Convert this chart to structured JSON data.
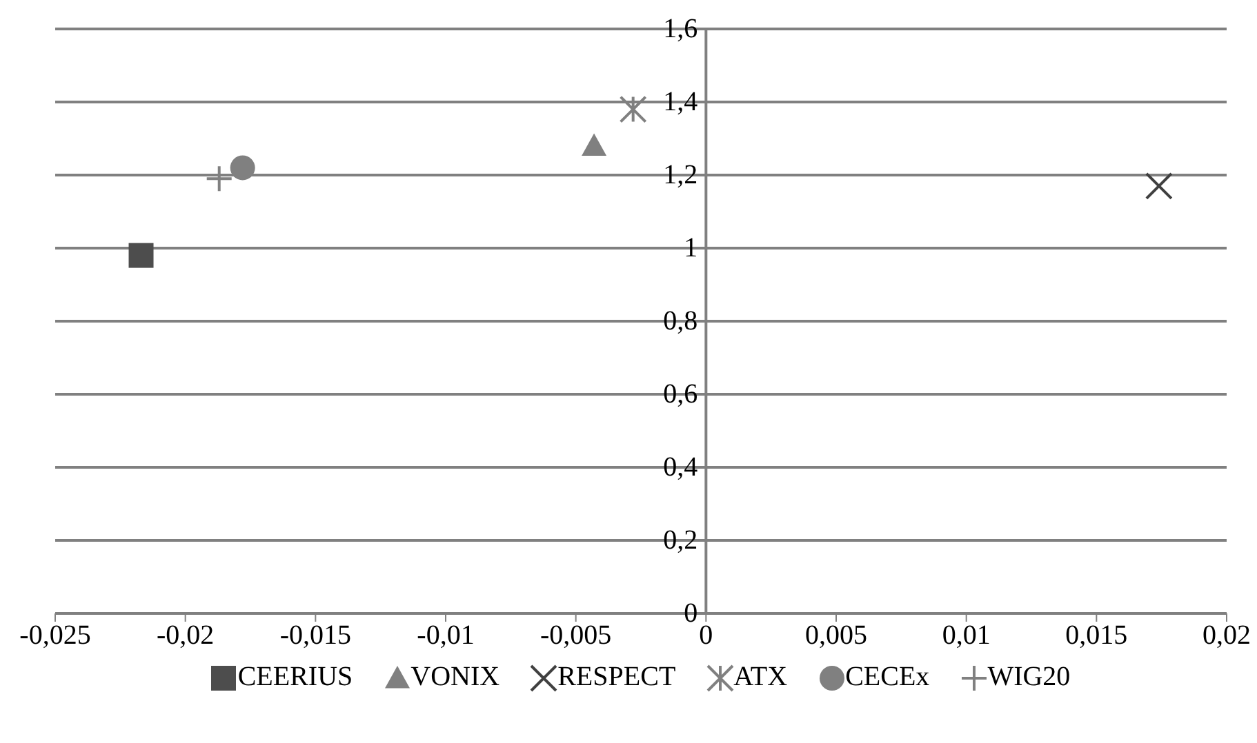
{
  "chart_data": {
    "type": "scatter",
    "series": [
      {
        "name": "CEERIUS",
        "color": "#4d4d4d",
        "marker": "square",
        "x": [
          -0.0217
        ],
        "values": [
          0.98
        ]
      },
      {
        "name": "VONIX",
        "color": "#808080",
        "marker": "triangle",
        "x": [
          -0.0043
        ],
        "values": [
          1.28
        ]
      },
      {
        "name": "RESPECT",
        "color": "#404040",
        "marker": "cross",
        "x": [
          0.0174
        ],
        "values": [
          1.17
        ]
      },
      {
        "name": "ATX",
        "color": "#808080",
        "x": [
          -0.0028
        ],
        "values": [
          1.38
        ]
      },
      {
        "name": "CECEx",
        "color": "#808080",
        "marker": "circle",
        "x": [
          -0.0178
        ],
        "values": [
          1.22
        ]
      },
      {
        "name": "WIG20",
        "color": "#808080",
        "marker": "plus",
        "x": [
          -0.0187
        ],
        "values": [
          1.19
        ]
      }
    ],
    "xlim": [
      -0.025,
      0.02
    ],
    "xticks": [
      {
        "value": -0.025,
        "label": "-0,025"
      },
      {
        "value": -0.02,
        "label": "-0,02"
      },
      {
        "value": -0.015,
        "label": "-0,015"
      },
      {
        "value": -0.01,
        "label": "-0,01"
      },
      {
        "value": -0.005,
        "label": "-0,005"
      },
      0,
      {
        "value": 0.005,
        "label": "0,005"
      },
      {
        "value": 0.01,
        "label": "0,01"
      },
      {
        "value": 0.015,
        "label": "0,015"
      },
      {
        "value": 0.02,
        "label": "0,02"
      }
    ],
    "ylim": [
      0,
      1.6
    ],
    "yticks": [
      0,
      {
        "value": 0.2,
        "label": "0,2"
      },
      {
        "value": 0.4,
        "label": "0,4"
      },
      {
        "value": 0.6,
        "label": "0,6"
      },
      {
        "value": 0.8,
        "label": "0,8"
      },
      1,
      {
        "value": 1.2,
        "label": "1,2"
      },
      {
        "value": 1.4,
        "label": "1,4"
      },
      {
        "value": 1.6,
        "label": "1,6"
      }
    ],
    "grid": "y",
    "legend": "bottom"
  }
}
